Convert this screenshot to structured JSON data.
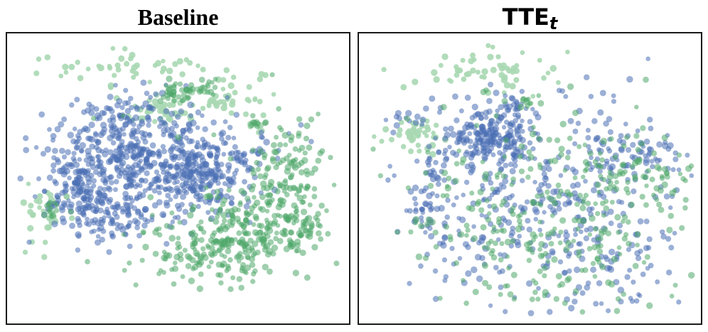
{
  "chart_data": [
    {
      "type": "scatter",
      "title": "Baseline",
      "x_range": [
        0,
        100
      ],
      "y_range": [
        0,
        100
      ],
      "grid": false,
      "colors": {
        "blue": "#4a6fb5",
        "green": "#4fa869",
        "pale_green": "#a9d8b3"
      },
      "series": [
        {
          "color": "blue",
          "clusters": [
            {
              "cx": 40,
              "cy": 58,
              "sx": 15,
              "sy": 10,
              "n": 420
            },
            {
              "cx": 57,
              "cy": 52,
              "sx": 10,
              "sy": 8,
              "n": 220
            },
            {
              "cx": 23,
              "cy": 50,
              "sx": 8,
              "sy": 9,
              "n": 150
            },
            {
              "cx": 30,
              "cy": 36,
              "sx": 8,
              "sy": 5,
              "n": 90
            },
            {
              "cx": 35,
              "cy": 75,
              "sx": 5,
              "sy": 4,
              "n": 40
            },
            {
              "cx": 12,
              "cy": 40,
              "sx": 2,
              "sy": 1.5,
              "n": 10
            },
            {
              "cx": 18,
              "cy": 48,
              "sx": 3,
              "sy": 2,
              "n": 20
            }
          ]
        },
        {
          "color": "green",
          "clusters": [
            {
              "cx": 64,
              "cy": 24,
              "sx": 12,
              "sy": 7,
              "n": 220
            },
            {
              "cx": 75,
              "cy": 36,
              "sx": 8,
              "sy": 7,
              "n": 130
            },
            {
              "cx": 86,
              "cy": 54,
              "sx": 6,
              "sy": 9,
              "n": 110
            },
            {
              "cx": 90,
              "cy": 32,
              "sx": 3,
              "sy": 3,
              "n": 25
            },
            {
              "cx": 50,
              "cy": 82,
              "sx": 3,
              "sy": 2.5,
              "n": 35
            },
            {
              "cx": 59,
              "cy": 84,
              "sx": 2,
              "sy": 1.5,
              "n": 14
            },
            {
              "cx": 74,
              "cy": 70,
              "sx": 1.5,
              "sy": 1.2,
              "n": 8
            },
            {
              "cx": 12,
              "cy": 38,
              "sx": 3,
              "sy": 3,
              "n": 15
            }
          ],
          "singles": [
            [
              24,
              72
            ],
            [
              33,
              73
            ],
            [
              50,
              65
            ],
            [
              61,
              66
            ],
            [
              79,
              88
            ],
            [
              35,
              19
            ],
            [
              39,
              20
            ],
            [
              37,
              11
            ]
          ]
        },
        {
          "color": "pale_green",
          "clusters": [
            {
              "cx": 35,
              "cy": 90,
              "sx": 12,
              "sy": 4,
              "n": 45
            },
            {
              "cx": 44,
              "cy": 74,
              "sx": 4,
              "sy": 3,
              "n": 40
            },
            {
              "cx": 65,
              "cy": 80,
              "sx": 7,
              "sy": 5,
              "n": 50
            },
            {
              "cx": 7,
              "cy": 38,
              "sx": 4,
              "sy": 5,
              "n": 35
            },
            {
              "cx": 74,
              "cy": 69,
              "sx": 2,
              "sy": 2,
              "n": 8
            }
          ]
        }
      ]
    },
    {
      "type": "scatter",
      "title": "TTE",
      "title_subscript": "t",
      "x_range": [
        0,
        100
      ],
      "y_range": [
        0,
        100
      ],
      "grid": false,
      "colors": {
        "blue": "#4a6fb5",
        "green": "#4fa869",
        "pale_green": "#a9d8b3"
      },
      "series": [
        {
          "color": "blue",
          "clusters": [
            {
              "cx": 38,
              "cy": 66,
              "sx": 6,
              "sy": 6,
              "n": 200
            },
            {
              "cx": 58,
              "cy": 36,
              "sx": 22,
              "sy": 20,
              "n": 420
            },
            {
              "cx": 82,
              "cy": 58,
              "sx": 10,
              "sy": 6,
              "n": 70
            },
            {
              "cx": 20,
              "cy": 56,
              "sx": 3,
              "sy": 3,
              "n": 20
            },
            {
              "cx": 18,
              "cy": 40,
              "sx": 4,
              "sy": 5,
              "n": 30
            },
            {
              "cx": 47,
              "cy": 76,
              "sx": 3,
              "sy": 2,
              "n": 18
            },
            {
              "cx": 12,
              "cy": 72,
              "sx": 4,
              "sy": 3,
              "n": 15
            }
          ],
          "singles": [
            [
              27,
              80
            ],
            [
              61,
              80
            ],
            [
              60,
              82
            ]
          ]
        },
        {
          "color": "green",
          "clusters": [
            {
              "cx": 58,
              "cy": 38,
              "sx": 22,
              "sy": 20,
              "n": 330
            },
            {
              "cx": 82,
              "cy": 52,
              "sx": 8,
              "sy": 6,
              "n": 50
            },
            {
              "cx": 49,
              "cy": 78,
              "sx": 1.5,
              "sy": 1.2,
              "n": 8
            }
          ],
          "singles": [
            [
              4,
              51
            ],
            [
              47,
              58
            ],
            [
              25,
              50
            ],
            [
              64,
              74
            ],
            [
              20,
              34
            ],
            [
              15,
              35
            ]
          ]
        },
        {
          "color": "pale_green",
          "clusters": [
            {
              "cx": 39,
              "cy": 89,
              "sx": 12,
              "sy": 3.5,
              "n": 55
            },
            {
              "cx": 15,
              "cy": 66,
              "sx": 4,
              "sy": 4,
              "n": 45
            }
          ]
        }
      ]
    }
  ]
}
